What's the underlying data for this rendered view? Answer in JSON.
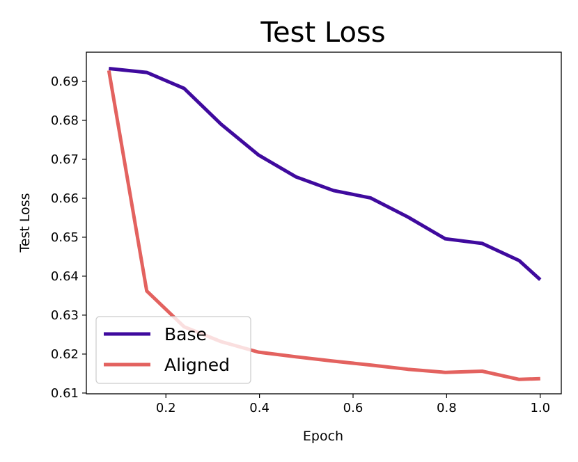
{
  "chart_data": {
    "type": "line",
    "title": "Test Loss",
    "xlabel": "Epoch",
    "ylabel": "Test Loss",
    "xlim": [
      0.03,
      1.045
    ],
    "ylim": [
      0.6098,
      0.6975
    ],
    "xticks": [
      0.2,
      0.4,
      0.6,
      0.8,
      1.0
    ],
    "xtick_labels": [
      "0.2",
      "0.4",
      "0.6",
      "0.8",
      "1.0"
    ],
    "yticks": [
      0.61,
      0.62,
      0.63,
      0.64,
      0.65,
      0.66,
      0.67,
      0.68,
      0.69
    ],
    "ytick_labels": [
      "0.61",
      "0.62",
      "0.63",
      "0.64",
      "0.65",
      "0.66",
      "0.67",
      "0.68",
      "0.69"
    ],
    "grid": false,
    "legend_position": "lower-left",
    "x": [
      0.078,
      0.159,
      0.239,
      0.318,
      0.398,
      0.478,
      0.558,
      0.637,
      0.717,
      0.797,
      0.876,
      0.955,
      1.0
    ],
    "series": [
      {
        "name": "Base",
        "color": "#3f0a9e",
        "values": [
          0.6933,
          0.6923,
          0.6882,
          0.679,
          0.6711,
          0.6655,
          0.662,
          0.6601,
          0.6552,
          0.6496,
          0.6484,
          0.644,
          0.6391
        ]
      },
      {
        "name": "Aligned",
        "color": "#e3625f",
        "values": [
          0.6928,
          0.6362,
          0.627,
          0.6232,
          0.6205,
          0.6193,
          0.6182,
          0.6172,
          0.6161,
          0.6153,
          0.6156,
          0.6135,
          0.6137
        ]
      }
    ]
  }
}
